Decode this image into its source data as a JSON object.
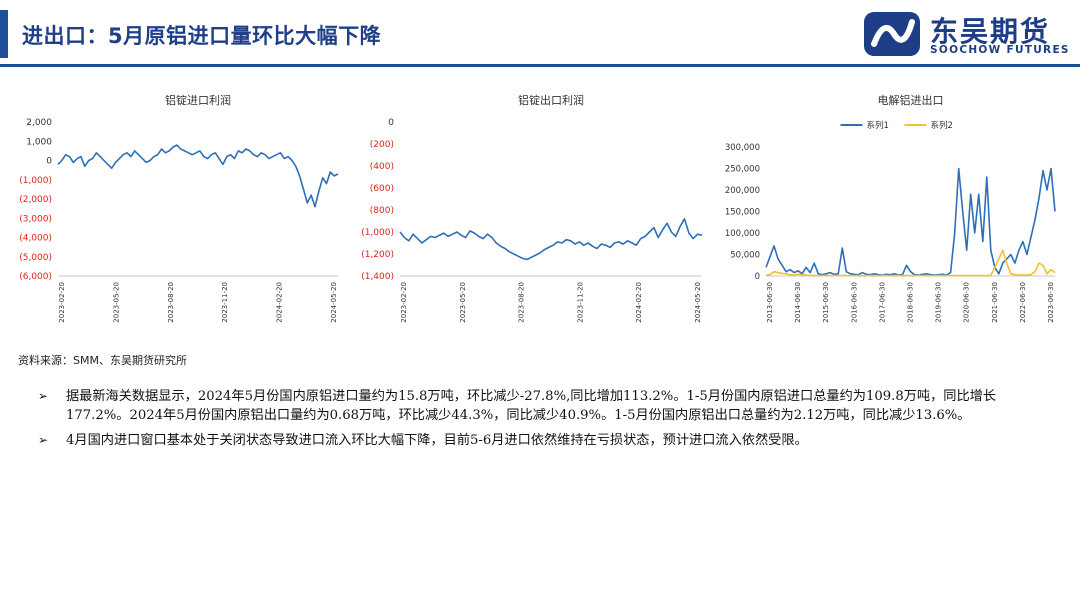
{
  "header": {
    "title": "进出口：5月原铝进口量环比大幅下降",
    "logo_cn": "东吴期货",
    "logo_en": "SOOCHOW FUTURES"
  },
  "colors": {
    "brand": "#1f4e9c",
    "series_blue": "#2e6fb7",
    "series_yellow": "#f2c12e",
    "negative_tick": "#e0201b"
  },
  "chart_data": [
    {
      "type": "line",
      "title": "铝锭进口利润",
      "y_ticks": [
        "2,000",
        "1,000",
        "0",
        "(1,000)",
        "(2,000)",
        "(3,000)",
        "(4,000)",
        "(5,000)",
        "(6,000)"
      ],
      "x_ticks": [
        "2023-02-20",
        "2023-05-20",
        "2023-08-20",
        "2023-11-20",
        "2024-02-20",
        "2024-05-20"
      ],
      "ylim": [
        -6000,
        2000
      ],
      "series": [
        {
          "values": [
            -200,
            0,
            300,
            200,
            -100,
            100,
            200,
            -300,
            0,
            100,
            400,
            200,
            0,
            -200,
            -400,
            -100,
            100,
            300,
            400,
            200,
            500,
            300,
            100,
            -100,
            0,
            200,
            300,
            600,
            400,
            500,
            700,
            800,
            600,
            500,
            400,
            300,
            400,
            500,
            200,
            100,
            300,
            400,
            100,
            -200,
            200,
            300,
            100,
            500,
            400,
            600,
            500,
            300,
            200,
            400,
            300,
            100,
            200,
            300,
            400,
            100,
            200,
            0,
            -300,
            -800,
            -1500,
            -2200,
            -1800,
            -2400,
            -1600,
            -900,
            -1200,
            -600,
            -800,
            -700
          ]
        }
      ]
    },
    {
      "type": "line",
      "title": "铝锭出口利润",
      "y_ticks": [
        "0",
        "(200)",
        "(400)",
        "(600)",
        "(800)",
        "(1,000)",
        "(1,200)",
        "(1,400)"
      ],
      "x_ticks": [
        "2023-02-20",
        "2023-05-20",
        "2023-08-20",
        "2023-11-20",
        "2024-02-20",
        "2024-05-20"
      ],
      "ylim": [
        -1400,
        0
      ],
      "series": [
        {
          "values": [
            -1000,
            -1050,
            -1080,
            -1020,
            -1060,
            -1100,
            -1070,
            -1040,
            -1050,
            -1030,
            -1010,
            -1040,
            -1020,
            -1000,
            -1030,
            -1050,
            -990,
            -1010,
            -1040,
            -1060,
            -1020,
            -1050,
            -1100,
            -1130,
            -1150,
            -1180,
            -1200,
            -1220,
            -1240,
            -1250,
            -1230,
            -1210,
            -1190,
            -1160,
            -1140,
            -1120,
            -1090,
            -1100,
            -1070,
            -1080,
            -1110,
            -1090,
            -1120,
            -1100,
            -1130,
            -1150,
            -1110,
            -1120,
            -1140,
            -1100,
            -1090,
            -1110,
            -1080,
            -1100,
            -1120,
            -1060,
            -1040,
            -1000,
            -960,
            -1050,
            -980,
            -920,
            -1000,
            -1040,
            -950,
            -880,
            -1010,
            -1060,
            -1020,
            -1030
          ]
        }
      ]
    },
    {
      "type": "line",
      "title": "电解铝进出口",
      "y_ticks": [
        "300,000",
        "250,000",
        "200,000",
        "150,000",
        "100,000",
        "50,000",
        "0"
      ],
      "x_ticks": [
        "2013-06-30",
        "2014-06-30",
        "2015-06-30",
        "2016-06-30",
        "2017-06-30",
        "2018-06-30",
        "2019-06-30",
        "2020-06-30",
        "2021-06-30",
        "2022-06-30",
        "2023-06-30"
      ],
      "ylim": [
        0,
        300000
      ],
      "legend_position": "top",
      "series": [
        {
          "name": "系列1",
          "values": [
            20000,
            45000,
            70000,
            40000,
            25000,
            10000,
            15000,
            8000,
            12000,
            5000,
            20000,
            8000,
            30000,
            5000,
            3000,
            5000,
            8000,
            4000,
            5000,
            65000,
            10000,
            5000,
            4000,
            3000,
            8000,
            4000,
            3000,
            5000,
            3000,
            2000,
            4000,
            3000,
            5000,
            2000,
            3000,
            25000,
            10000,
            3000,
            2000,
            4000,
            5000,
            3000,
            2000,
            3000,
            4000,
            2000,
            8000,
            100000,
            250000,
            150000,
            60000,
            190000,
            100000,
            190000,
            80000,
            230000,
            60000,
            20000,
            5000,
            30000,
            40000,
            50000,
            30000,
            60000,
            80000,
            50000,
            90000,
            130000,
            180000,
            245000,
            200000,
            250000,
            150000
          ]
        },
        {
          "name": "系列2",
          "values": [
            2000,
            3000,
            10000,
            8000,
            6000,
            5000,
            3000,
            2000,
            4000,
            3000,
            2000,
            1000,
            1000,
            1000,
            1000,
            1000,
            1000,
            1000,
            1000,
            1000,
            1000,
            1000,
            1000,
            1000,
            1000,
            1000,
            1000,
            1000,
            1000,
            1000,
            1000,
            1000,
            1000,
            1000,
            1000,
            1000,
            1000,
            1000,
            1000,
            1000,
            1000,
            1000,
            1000,
            1000,
            1000,
            1000,
            1000,
            1000,
            1000,
            1000,
            1000,
            1000,
            1000,
            1000,
            1000,
            1000,
            1000,
            20000,
            40000,
            60000,
            30000,
            5000,
            3000,
            2000,
            2000,
            2000,
            3000,
            10000,
            30000,
            25000,
            5000,
            15000,
            8000
          ]
        }
      ]
    }
  ],
  "source": "资料来源：SMM、东吴期货研究所",
  "bullets": [
    "据最新海关数据显示，2024年5月份国内原铝进口量约为15.8万吨，环比减少-27.8%,同比增加113.2%。1-5月份国内原铝进口总量约为109.8万吨，同比增长177.2%。2024年5月份国内原铝出口量约为0.68万吨，环比减少44.3%，同比减少40.9%。1-5月份国内原铝出口总量约为2.12万吨，同比减少13.6%。",
    "4月国内进口窗口基本处于关闭状态导致进口流入环比大幅下降，目前5-6月进口依然维持在亏损状态，预计进口流入依然受限。"
  ],
  "bullet_icon": "arrow-bullet-icon"
}
